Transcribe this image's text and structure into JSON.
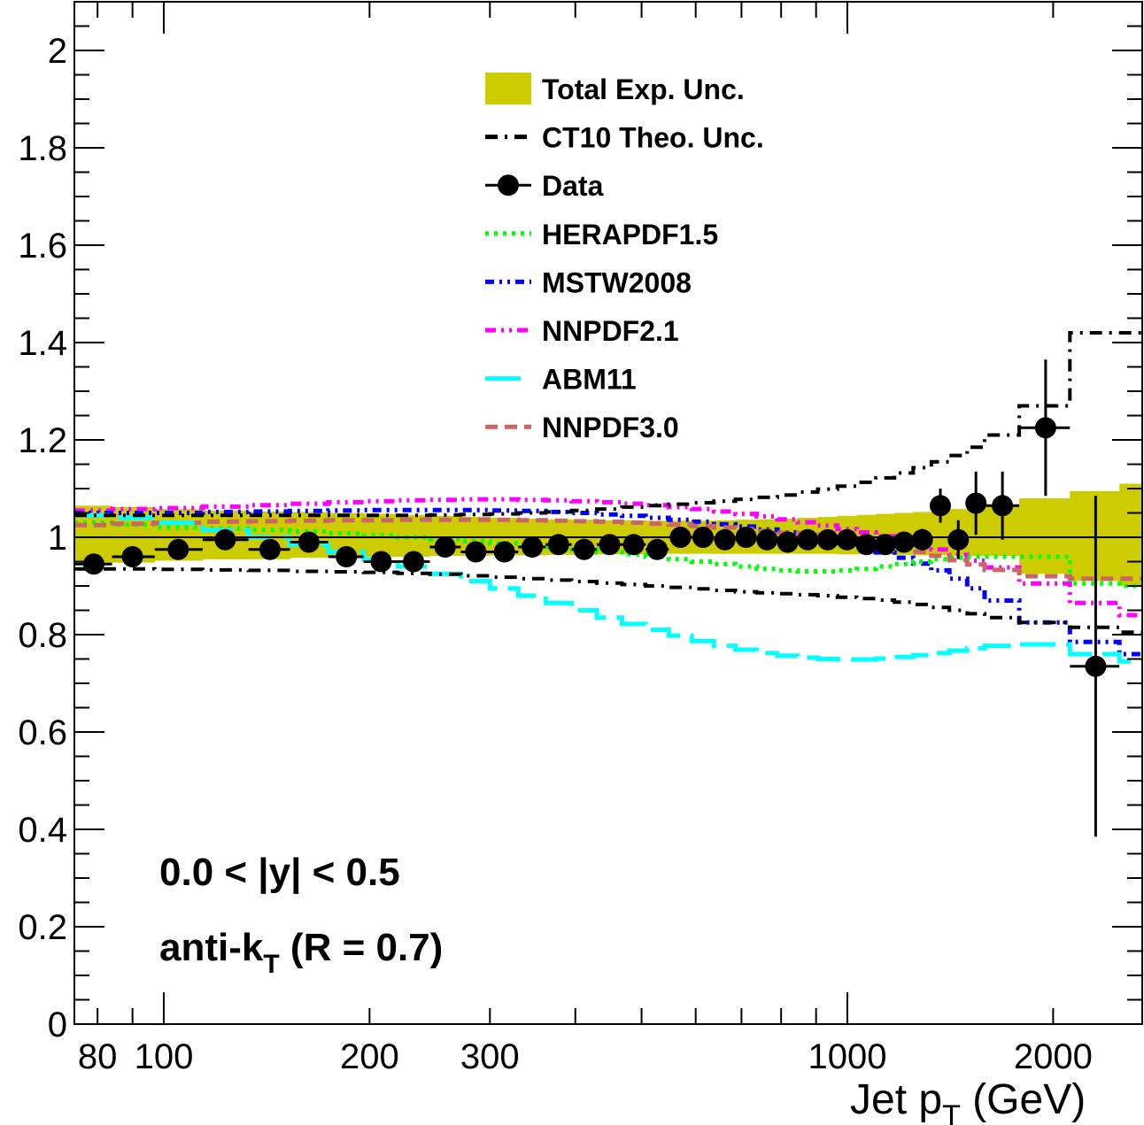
{
  "chart_data": {
    "type": "line",
    "title": "",
    "xlabel": "Jet p",
    "xlabel_sub": "T",
    "xlabel_unit": " (GeV)",
    "ylabel": "",
    "x_scale": "log",
    "xlim": [
      74,
      2700
    ],
    "ylim": [
      0,
      2.1
    ],
    "x_ticks": [
      80,
      100,
      200,
      300,
      1000,
      2000
    ],
    "x_tick_labels": [
      "80",
      "100",
      "200",
      "300",
      "1000",
      "2000"
    ],
    "y_ticks": [
      0,
      0.2,
      0.4,
      0.6,
      0.8,
      1,
      1.2,
      1.4,
      1.6,
      1.8,
      2
    ],
    "y_tick_labels": [
      "0",
      "0.2",
      "0.4",
      "0.6",
      "0.8",
      "1",
      "1.2",
      "1.4",
      "1.6",
      "1.8",
      "2"
    ],
    "grid": false,
    "legend_position": "top-center",
    "annotations": [
      "0.0 < |y| < 0.5",
      "anti-k",
      "T",
      " (R = 0.7)"
    ],
    "bin_edges": [
      74,
      84,
      97,
      114,
      133,
      153,
      174,
      196,
      220,
      245,
      272,
      300,
      330,
      362,
      395,
      430,
      468,
      507,
      548,
      592,
      638,
      686,
      737,
      790,
      846,
      905,
      967,
      1032,
      1101,
      1172,
      1248,
      1327,
      1410,
      1497,
      1588,
      1784,
      2116,
      2500,
      3000
    ],
    "series": [
      {
        "name": "Total Exp. Unc.",
        "kind": "band",
        "color": "#cccc00",
        "lower": [
          0.945,
          0.948,
          0.952,
          0.955,
          0.955,
          0.958,
          0.958,
          0.96,
          0.96,
          0.962,
          0.962,
          0.963,
          0.963,
          0.964,
          0.964,
          0.965,
          0.965,
          0.966,
          0.966,
          0.966,
          0.966,
          0.966,
          0.966,
          0.966,
          0.966,
          0.966,
          0.965,
          0.965,
          0.965,
          0.964,
          0.963,
          0.963,
          0.963,
          0.962,
          0.962,
          0.925,
          0.91,
          0.9
        ],
        "upper": [
          1.065,
          1.062,
          1.058,
          1.055,
          1.053,
          1.052,
          1.05,
          1.048,
          1.046,
          1.044,
          1.042,
          1.04,
          1.038,
          1.037,
          1.036,
          1.035,
          1.035,
          1.034,
          1.034,
          1.034,
          1.035,
          1.036,
          1.037,
          1.038,
          1.04,
          1.042,
          1.044,
          1.046,
          1.048,
          1.05,
          1.052,
          1.055,
          1.058,
          1.062,
          1.065,
          1.08,
          1.095,
          1.11
        ]
      },
      {
        "name": "CT10 Theo. Unc.",
        "kind": "step-pair",
        "color": "#000000",
        "upper": [
          1.045,
          1.045,
          1.045,
          1.045,
          1.045,
          1.045,
          1.045,
          1.045,
          1.045,
          1.046,
          1.047,
          1.048,
          1.05,
          1.052,
          1.055,
          1.058,
          1.062,
          1.065,
          1.068,
          1.071,
          1.074,
          1.078,
          1.082,
          1.087,
          1.093,
          1.099,
          1.105,
          1.113,
          1.122,
          1.132,
          1.143,
          1.155,
          1.168,
          1.185,
          1.21,
          1.27,
          1.42,
          1.42
        ],
        "lower": [
          0.935,
          0.935,
          0.934,
          0.933,
          0.932,
          0.93,
          0.929,
          0.928,
          0.926,
          0.924,
          0.921,
          0.918,
          0.915,
          0.912,
          0.909,
          0.906,
          0.903,
          0.9,
          0.897,
          0.894,
          0.891,
          0.888,
          0.886,
          0.884,
          0.882,
          0.88,
          0.877,
          0.874,
          0.871,
          0.867,
          0.862,
          0.856,
          0.85,
          0.843,
          0.835,
          0.825,
          0.815,
          0.805
        ]
      },
      {
        "name": "HERAPDF1.5",
        "kind": "step",
        "color": "#00ff00",
        "values": [
          1.03,
          1.026,
          1.02,
          1.018,
          1.015,
          1.012,
          1.008,
          1.004,
          1.0,
          0.996,
          0.992,
          0.988,
          0.984,
          0.98,
          0.975,
          0.97,
          0.965,
          0.96,
          0.955,
          0.95,
          0.945,
          0.94,
          0.935,
          0.932,
          0.93,
          0.93,
          0.932,
          0.935,
          0.94,
          0.945,
          0.95,
          0.955,
          0.958,
          0.96,
          0.96,
          0.96,
          0.905,
          0.9
        ]
      },
      {
        "name": "MSTW2008",
        "kind": "step",
        "color": "#0000ff",
        "values": [
          1.05,
          1.05,
          1.05,
          1.052,
          1.053,
          1.054,
          1.055,
          1.056,
          1.056,
          1.056,
          1.056,
          1.055,
          1.054,
          1.052,
          1.05,
          1.047,
          1.044,
          1.04,
          1.036,
          1.032,
          1.027,
          1.022,
          1.016,
          1.01,
          1.003,
          0.996,
          0.988,
          0.979,
          0.969,
          0.958,
          0.946,
          0.932,
          0.915,
          0.895,
          0.87,
          0.825,
          0.785,
          0.76
        ]
      },
      {
        "name": "NNPDF2.1",
        "kind": "step",
        "color": "#ff00ff",
        "values": [
          1.055,
          1.058,
          1.06,
          1.063,
          1.066,
          1.069,
          1.072,
          1.074,
          1.076,
          1.077,
          1.078,
          1.078,
          1.077,
          1.076,
          1.074,
          1.072,
          1.069,
          1.066,
          1.062,
          1.058,
          1.053,
          1.048,
          1.043,
          1.037,
          1.031,
          1.024,
          1.017,
          1.01,
          1.002,
          0.994,
          0.985,
          0.975,
          0.964,
          0.952,
          0.938,
          0.905,
          0.865,
          0.84
        ]
      },
      {
        "name": "ABM11",
        "kind": "step",
        "color": "#00ffff",
        "values": [
          1.045,
          1.04,
          1.03,
          1.015,
          1.0,
          0.985,
          0.97,
          0.955,
          0.94,
          0.925,
          0.91,
          0.895,
          0.88,
          0.865,
          0.85,
          0.835,
          0.822,
          0.81,
          0.798,
          0.787,
          0.777,
          0.769,
          0.762,
          0.757,
          0.753,
          0.75,
          0.749,
          0.749,
          0.751,
          0.754,
          0.758,
          0.762,
          0.767,
          0.772,
          0.777,
          0.78,
          0.76,
          0.745
        ]
      },
      {
        "name": "NNPDF3.0",
        "kind": "step",
        "color": "#cc6666",
        "values": [
          1.025,
          1.028,
          1.03,
          1.032,
          1.033,
          1.034,
          1.035,
          1.035,
          1.036,
          1.036,
          1.036,
          1.036,
          1.035,
          1.034,
          1.033,
          1.032,
          1.03,
          1.028,
          1.026,
          1.023,
          1.02,
          1.017,
          1.013,
          1.009,
          1.005,
          1.0,
          0.995,
          0.99,
          0.984,
          0.978,
          0.97,
          0.962,
          0.953,
          0.944,
          0.933,
          0.92,
          0.915,
          0.915
        ]
      },
      {
        "name": "Data",
        "kind": "points",
        "color": "#000000",
        "x": [
          79,
          90,
          105,
          123,
          143,
          163,
          185,
          208,
          232,
          258,
          286,
          315,
          346,
          378,
          412,
          449,
          487,
          527,
          570,
          615,
          662,
          711,
          763,
          818,
          875,
          936,
          999,
          1066,
          1136,
          1210,
          1287,
          1368,
          1453,
          1542,
          1686,
          1950,
          2308
        ],
        "y": [
          0.945,
          0.96,
          0.975,
          0.995,
          0.975,
          0.99,
          0.96,
          0.95,
          0.95,
          0.98,
          0.97,
          0.97,
          0.98,
          0.985,
          0.975,
          0.985,
          0.985,
          0.975,
          1.0,
          1.0,
          0.995,
          1.0,
          0.995,
          0.99,
          0.995,
          0.995,
          0.995,
          0.985,
          0.985,
          0.99,
          0.995,
          1.065,
          0.995,
          1.07,
          1.065,
          1.225,
          0.735
        ],
        "err": [
          0.01,
          0.01,
          0.01,
          0.01,
          0.01,
          0.01,
          0.01,
          0.01,
          0.01,
          0.01,
          0.01,
          0.01,
          0.01,
          0.01,
          0.01,
          0.01,
          0.01,
          0.01,
          0.01,
          0.01,
          0.01,
          0.01,
          0.01,
          0.01,
          0.01,
          0.012,
          0.012,
          0.014,
          0.016,
          0.018,
          0.022,
          0.035,
          0.04,
          0.065,
          0.07,
          0.14,
          0.35
        ]
      }
    ]
  }
}
